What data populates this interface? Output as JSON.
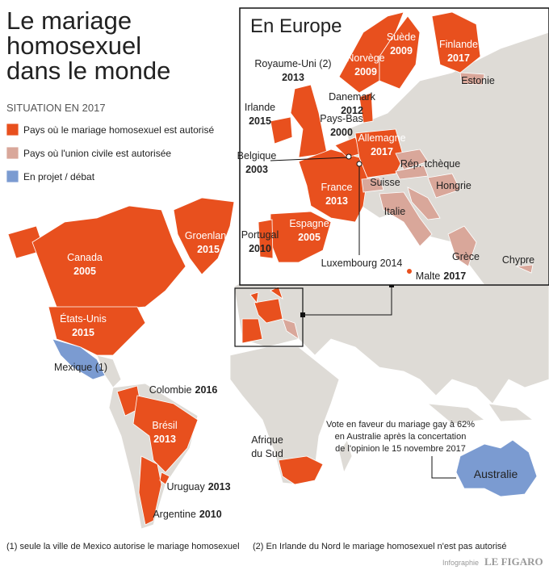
{
  "header": {
    "title_lines": [
      "Le mariage",
      "homosexuel",
      "dans le monde"
    ]
  },
  "legend": {
    "heading": "SITUATION EN 2017",
    "items": [
      "Pays où le mariage homosexuel est autorisé",
      "Pays où l'union civile est autorisée",
      "En projet / débat"
    ]
  },
  "inset": {
    "title": "En Europe",
    "labels": [
      {
        "lines": [
          "Royaume-Uni (2)",
          "2013"
        ]
      },
      {
        "lines": [
          "Irlande",
          "2015"
        ]
      },
      {
        "lines": [
          "Danemark",
          "2012"
        ]
      },
      {
        "lines": [
          "Pays-Bas",
          "2000"
        ]
      },
      {
        "lines": [
          "Belgique",
          "2003"
        ]
      },
      {
        "lines": [
          "France",
          "2013"
        ]
      },
      {
        "lines": [
          "Espagne",
          "2005"
        ]
      },
      {
        "lines": [
          "Portugal",
          "2010"
        ]
      },
      {
        "lines": [
          "Luxembourg 2014"
        ]
      },
      {
        "lines": [
          "Allemagne",
          "2017"
        ]
      },
      {
        "lines": [
          "Norvège",
          "2009"
        ]
      },
      {
        "lines": [
          "Suède",
          "2009"
        ]
      },
      {
        "lines": [
          "Finlande",
          "2017"
        ]
      },
      {
        "lines": [
          "Malte",
          "2017"
        ]
      },
      {
        "lines": [
          "Estonie"
        ]
      },
      {
        "lines": [
          "Rép. tchèque"
        ]
      },
      {
        "lines": [
          "Hongrie"
        ]
      },
      {
        "lines": [
          "Suisse"
        ]
      },
      {
        "lines": [
          "Italie"
        ]
      },
      {
        "lines": [
          "Grèce"
        ]
      },
      {
        "lines": [
          "Chypre"
        ]
      }
    ]
  },
  "world": {
    "labels": [
      {
        "lines": [
          "Canada",
          "2005"
        ]
      },
      {
        "lines": [
          "Groenland",
          "2015"
        ]
      },
      {
        "lines": [
          "États-Unis",
          "2015"
        ]
      },
      {
        "lines": [
          "Mexique (1)"
        ]
      },
      {
        "lines": [
          "Colombie",
          "2016"
        ]
      },
      {
        "lines": [
          "Brésil",
          "2013"
        ]
      },
      {
        "lines": [
          "Uruguay",
          "2013"
        ]
      },
      {
        "lines": [
          "Argentine",
          "2010"
        ]
      },
      {
        "lines": [
          "Afrique",
          "du Sud"
        ]
      },
      {
        "lines": [
          "Australie"
        ]
      }
    ],
    "note_lines": [
      "Vote en faveur du mariage gay à 62%",
      "en Australie après la concertation",
      "de l'opinion le 15 novembre 2017"
    ]
  },
  "footnotes": [
    "(1) seule la ville de Mexico autorise le mariage homosexuel",
    "(2) En Irlande du Nord le mariage homosexuel n'est pas autorisé"
  ],
  "credit": {
    "label": "Infographie",
    "brand": "LE FIGARO"
  }
}
